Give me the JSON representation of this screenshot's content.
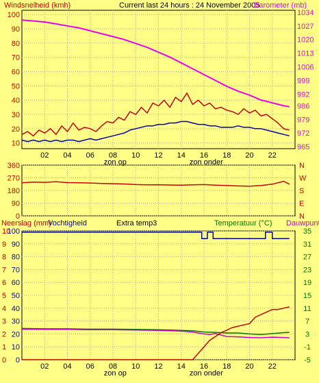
{
  "colors": {
    "background": "#FFFF88",
    "wind": "#CC0000",
    "gust_low": "#0000AA",
    "pressure": "#EE00EE",
    "direction": "#CC0000",
    "rain": "#CC0000",
    "humidity": "#0000AA",
    "temperature": "#007700",
    "dewpoint": "#CC00CC",
    "grid": "#A8A8A8"
  },
  "header": {
    "wind_title": "Windsnelheid (kmh)",
    "main_title": "Current last 24 hours : 24 November 2005",
    "pressure_title": "Barometer (mb)"
  },
  "bottom_header": {
    "rain_title": "Neerslag (mm)",
    "humidity_title": "Vochtigheid",
    "extra_title": "Extra temp3",
    "temp_title": "Temperatuur (°C)",
    "dew_title": "Dauwpunt"
  },
  "x_axis": {
    "ticks": [
      "02",
      "04",
      "06",
      "08",
      "10",
      "12",
      "14",
      "16",
      "18",
      "20",
      "22"
    ],
    "sunrise_label": "zon op",
    "sunset_label": "zon onder",
    "sunrise_hour": 8.2,
    "sunset_hour": 16.2
  },
  "chart_data": [
    {
      "type": "line",
      "title": "Windsnelheid (kmh) / Barometer (mb)",
      "x_unit": "hour",
      "x_range": [
        0,
        24
      ],
      "y_left": {
        "label": "Windsnelheid (kmh)",
        "ticks": [
          10,
          20,
          30,
          40,
          50,
          60,
          70,
          80,
          90,
          100
        ],
        "range": [
          6,
          103
        ]
      },
      "y_right": {
        "label": "Barometer (mb)",
        "ticks": [
          965,
          972,
          979,
          986,
          992,
          999,
          1006,
          1013,
          1020,
          1027,
          1034
        ],
        "range": [
          964,
          1035
        ]
      },
      "series": [
        {
          "name": "Windsnelheid (kmh)",
          "axis": "left",
          "color": "#CC0000",
          "x": [
            0,
            0.5,
            1,
            1.5,
            2,
            2.5,
            3,
            3.5,
            4,
            4.5,
            5,
            5.5,
            6,
            6.5,
            7,
            7.5,
            8,
            8.5,
            9,
            9.5,
            10,
            10.5,
            11,
            11.5,
            12,
            12.5,
            13,
            13.5,
            14,
            14.5,
            15,
            15.5,
            16,
            16.5,
            17,
            17.5,
            18,
            18.5,
            19,
            19.5,
            20,
            20.5,
            21,
            21.5,
            22,
            22.5,
            23,
            23.5
          ],
          "y": [
            16,
            18,
            15,
            19,
            17,
            20,
            16,
            22,
            18,
            24,
            19,
            21,
            20,
            18,
            22,
            25,
            24,
            28,
            26,
            32,
            30,
            35,
            31,
            38,
            36,
            40,
            35,
            42,
            39,
            45,
            37,
            40,
            36,
            38,
            34,
            35,
            33,
            32,
            30,
            34,
            31,
            33,
            29,
            30,
            27,
            24,
            20,
            19
          ]
        },
        {
          "name": "Windsnelheid min",
          "axis": "left",
          "color": "#0000AA",
          "x": [
            0,
            0.5,
            1,
            1.5,
            2,
            2.5,
            3,
            3.5,
            4,
            4.5,
            5,
            5.5,
            6,
            6.5,
            7,
            7.5,
            8,
            8.5,
            9,
            9.5,
            10,
            10.5,
            11,
            11.5,
            12,
            12.5,
            13,
            13.5,
            14,
            14.5,
            15,
            15.5,
            16,
            16.5,
            17,
            17.5,
            18,
            18.5,
            19,
            19.5,
            20,
            20.5,
            21,
            21.5,
            22,
            22.5,
            23,
            23.5
          ],
          "y": [
            12,
            11,
            12,
            11,
            12,
            11,
            12,
            11,
            12,
            12,
            11,
            12,
            13,
            12,
            13,
            14,
            15,
            16,
            17,
            19,
            20,
            21,
            22,
            22,
            23,
            23,
            24,
            24,
            25,
            25,
            24,
            23,
            23,
            22,
            22,
            21,
            21,
            21,
            22,
            21,
            21,
            20,
            20,
            19,
            18,
            17,
            16,
            15
          ]
        },
        {
          "name": "Barometer (mb)",
          "axis": "right",
          "color": "#EE00EE",
          "x": [
            0,
            1,
            2,
            3,
            4,
            5,
            6,
            7,
            8,
            9,
            10,
            11,
            12,
            13,
            14,
            15,
            16,
            17,
            18,
            19,
            20,
            21,
            22,
            23,
            23.5
          ],
          "y": [
            1030,
            1029.5,
            1029,
            1028,
            1027,
            1026,
            1024.5,
            1023,
            1021.5,
            1020,
            1018,
            1016,
            1013.5,
            1011,
            1008,
            1005,
            1002,
            999,
            996,
            993.5,
            991.5,
            989,
            987.5,
            986,
            985.5
          ]
        }
      ]
    },
    {
      "type": "line",
      "title": "Windrichting",
      "x_range": [
        0,
        24
      ],
      "y_left": {
        "ticks": [
          0,
          90,
          180,
          270,
          360
        ],
        "range": [
          0,
          360
        ]
      },
      "y_right_labels": [
        "N",
        "W",
        "S",
        "E",
        "N"
      ],
      "series": [
        {
          "name": "Windrichting",
          "color": "#CC0000",
          "x": [
            0,
            1,
            2,
            3,
            4,
            5,
            6,
            7,
            8,
            9,
            10,
            11,
            12,
            13,
            14,
            15,
            16,
            17,
            18,
            19,
            20,
            21,
            22,
            23,
            23.5
          ],
          "y": [
            235,
            240,
            238,
            242,
            236,
            235,
            233,
            230,
            228,
            226,
            222,
            220,
            221,
            219,
            218,
            220,
            222,
            218,
            215,
            212,
            210,
            215,
            225,
            245,
            225
          ]
        }
      ]
    },
    {
      "type": "line",
      "title": "Neerslag / Vochtigheid / Temperatuur / Dauwpunt",
      "x_range": [
        0,
        24
      ],
      "y_left_outer": {
        "label": "Neerslag (mm)",
        "ticks": [
          0,
          1,
          2,
          3,
          4,
          5,
          6,
          7,
          8,
          9,
          10
        ],
        "range": [
          0,
          10
        ]
      },
      "y_left_inner": {
        "label": "Vochtigheid",
        "ticks": [
          0,
          10,
          20,
          30,
          40,
          50,
          60,
          70,
          80,
          90,
          100
        ],
        "range": [
          0,
          100
        ]
      },
      "y_right": {
        "label": "Temperatuur (°C)",
        "ticks": [
          -5,
          -1,
          3,
          7,
          11,
          15,
          19,
          23,
          27,
          31,
          35
        ],
        "range": [
          -5,
          35
        ]
      },
      "series": [
        {
          "name": "Vochtigheid",
          "axis": "inner",
          "color": "#0000AA",
          "x": [
            0,
            15.8,
            15.8,
            16.3,
            16.3,
            16.8,
            16.8,
            21.4,
            21.4,
            22,
            22,
            23.5
          ],
          "y": [
            99,
            99,
            94,
            94,
            99,
            99,
            94,
            94,
            99,
            99,
            94,
            94
          ]
        },
        {
          "name": "Temperatuur (°C)",
          "axis": "right",
          "color": "#007700",
          "x": [
            0,
            2,
            4,
            6,
            8,
            10,
            12,
            14,
            15,
            16,
            17,
            18,
            19,
            20,
            21,
            22,
            23,
            23.5
          ],
          "y": [
            4.7,
            4.6,
            4.6,
            4.5,
            4.5,
            4.4,
            4.3,
            4.1,
            4.0,
            3.6,
            3.5,
            3.3,
            3.3,
            3.0,
            2.8,
            3.1,
            3.4,
            3.5
          ]
        },
        {
          "name": "Dauwpunt",
          "axis": "right",
          "color": "#CC00CC",
          "x": [
            0,
            2,
            4,
            6,
            8,
            10,
            12,
            14,
            15,
            16,
            16.5,
            17,
            18,
            19,
            20,
            21,
            22,
            23,
            23.5
          ],
          "y": [
            4.5,
            4.4,
            4.4,
            4.3,
            4.3,
            4.2,
            4.1,
            3.9,
            3.6,
            3.0,
            2.8,
            3.1,
            2.2,
            2.1,
            1.9,
            1.8,
            2.0,
            1.9,
            1.8
          ]
        },
        {
          "name": "Neerslag (mm)",
          "axis": "outer",
          "color": "#CC0000",
          "x": [
            0,
            15,
            15.5,
            16,
            16.5,
            17,
            17.5,
            18,
            18.5,
            19,
            19.5,
            20,
            20.5,
            21,
            21.5,
            22,
            22.5,
            23,
            23.5
          ],
          "y": [
            0,
            0,
            0.5,
            1.0,
            1.5,
            1.8,
            2.1,
            2.3,
            2.5,
            2.6,
            2.7,
            2.8,
            3.3,
            3.5,
            3.7,
            3.9,
            3.9,
            4.0,
            4.1
          ]
        }
      ]
    }
  ]
}
